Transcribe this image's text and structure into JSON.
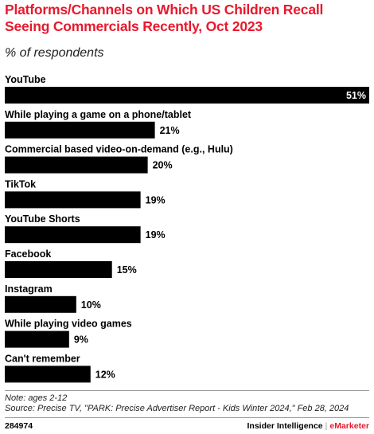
{
  "header": {
    "title": "Platforms/Channels on Which US Children Recall Seeing Commercials Recently, Oct 2023",
    "subtitle": "% of respondents"
  },
  "chart_data": {
    "type": "bar",
    "orientation": "horizontal",
    "categories": [
      "YouTube",
      "While playing a game on a phone/tablet",
      "Commercial based video-on-demand (e.g., Hulu)",
      "TikTok",
      "YouTube Shorts",
      "Facebook",
      "Instagram",
      "While playing video games",
      "Can't remember"
    ],
    "values": [
      51,
      21,
      20,
      19,
      19,
      15,
      10,
      9,
      12
    ],
    "value_labels": [
      "51%",
      "21%",
      "20%",
      "19%",
      "19%",
      "15%",
      "10%",
      "9%",
      "12%"
    ],
    "title": "Platforms/Channels on Which US Children Recall Seeing Commercials Recently, Oct 2023",
    "subtitle": "% of respondents",
    "xlim": [
      0,
      51
    ],
    "bar_color": "#000000",
    "grid": false,
    "legend": "none"
  },
  "footer": {
    "note": "Note: ages 2-12",
    "source": "Source: Precise TV, \"PARK: Precise Advertiser Report - Kids Winter 2024,\" Feb 28, 2024",
    "chart_id": "284974",
    "brand_left": "Insider Intelligence",
    "brand_sep": "|",
    "brand_right": "eMarketer"
  },
  "colors": {
    "accent": "#e8192c",
    "bar": "#000000"
  }
}
